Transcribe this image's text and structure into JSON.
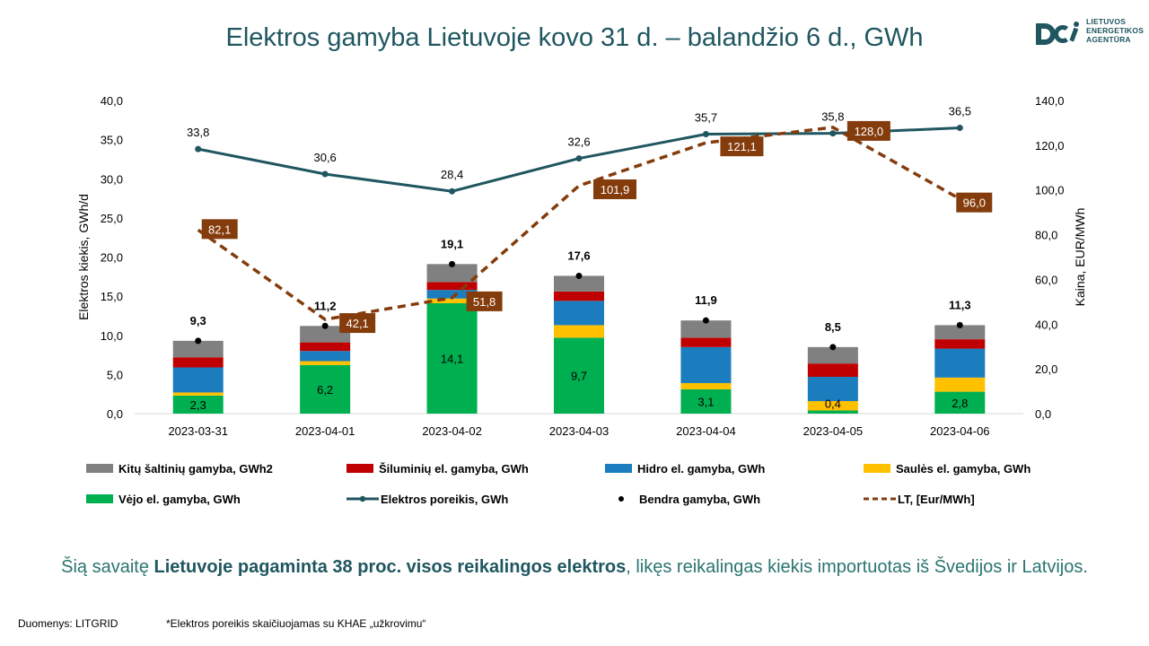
{
  "title": "Elektros gamyba Lietuvoje kovo 31 d. – balandžio 6 d., GWh",
  "logo": {
    "lines": [
      "LIETUVOS",
      "ENERGETIKOS",
      "AGENTŪRA"
    ]
  },
  "summary": {
    "pre": "Šią savaitę ",
    "bold": "Lietuvoje pagaminta 38 proc. visos reikalingos elektros",
    "post": ", likęs reikalingas kiekis importuotas iš Švedijos ir Latvijos."
  },
  "footer": {
    "source": "Duomenys: LITGRID",
    "note": "*Elektros poreikis skaičiuojamas su KHAE „užkrovimu“"
  },
  "colors": {
    "other": "#808080",
    "thermal": "#c00000",
    "hydro": "#1b7dbd",
    "solar": "#ffc000",
    "wind": "#00b050",
    "demand": "#1f5660",
    "price": "#843c0c",
    "total": "#000000"
  },
  "chart_data": {
    "type": "bar",
    "stacked": true,
    "categories": [
      "2023-03-31",
      "2023-04-01",
      "2023-04-02",
      "2023-04-03",
      "2023-04-04",
      "2023-04-05",
      "2023-04-06"
    ],
    "ylabel": "Elektros kiekis, GWh/d",
    "ylabel_right": "Kaina, EUR/MWh",
    "ylim": [
      0,
      40
    ],
    "yticks": [
      "0,0",
      "5,0",
      "10,0",
      "15,0",
      "20,0",
      "25,0",
      "30,0",
      "35,0",
      "40,0"
    ],
    "ylim_right": [
      0,
      140
    ],
    "yticks_right": [
      "0,0",
      "20,0",
      "40,0",
      "60,0",
      "80,0",
      "100,0",
      "120,0",
      "140,0"
    ],
    "grid": false,
    "legend_position": "bottom",
    "series": [
      {
        "name": "Vėjo el. gamyba, GWh",
        "key": "wind",
        "values": [
          2.3,
          6.2,
          14.1,
          9.7,
          3.1,
          0.4,
          2.8
        ],
        "labels": [
          "2,3",
          "6,2",
          "14,1",
          "9,7",
          "3,1",
          "0,4",
          "2,8"
        ]
      },
      {
        "name": "Saulės el. gamyba, GWh",
        "key": "solar",
        "values": [
          0.4,
          0.5,
          0.6,
          1.6,
          0.8,
          1.2,
          1.8
        ]
      },
      {
        "name": "Hidro el. gamyba, GWh",
        "key": "hydro",
        "values": [
          3.2,
          1.3,
          1.1,
          3.1,
          4.6,
          3.1,
          3.7
        ]
      },
      {
        "name": "Šiluminių el. gamyba, GWh",
        "key": "thermal",
        "values": [
          1.3,
          1.1,
          1.0,
          1.2,
          1.2,
          1.7,
          1.2
        ]
      },
      {
        "name": "Kitų šaltinių gamyba, GWh2",
        "key": "other",
        "values": [
          2.1,
          2.1,
          2.3,
          2.0,
          2.2,
          2.1,
          1.8
        ]
      }
    ],
    "total": {
      "name": "Bendra gamyba, GWh",
      "values": [
        9.3,
        11.2,
        19.1,
        17.6,
        11.9,
        8.5,
        11.3
      ],
      "labels": [
        "9,3",
        "11,2",
        "19,1",
        "17,6",
        "11,9",
        "8,5",
        "11,3"
      ]
    },
    "demand": {
      "name": "Elektros poreikis, GWh",
      "values": [
        33.8,
        30.6,
        28.4,
        32.6,
        35.7,
        35.8,
        36.5
      ],
      "labels": [
        "33,8",
        "30,6",
        "28,4",
        "32,6",
        "35,7",
        "35,8",
        "36,5"
      ]
    },
    "price": {
      "name": "LT, [Eur/MWh]",
      "values": [
        82.1,
        42.1,
        51.8,
        101.9,
        121.1,
        128.0,
        96.0
      ],
      "labels": [
        "82,1",
        "42,1",
        "51,8",
        "101,9",
        "121,1",
        "128,0",
        "96,0"
      ]
    }
  }
}
